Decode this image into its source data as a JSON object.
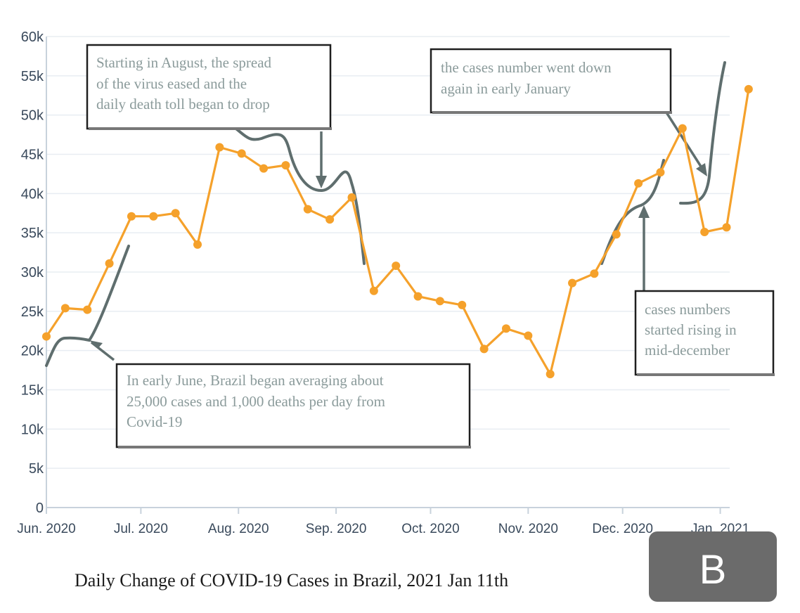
{
  "chart_data": {
    "type": "line",
    "title": "Daily Change of COVID-19 Cases in Brazil, 2021 Jan 11th",
    "xlabel": "",
    "ylabel": "",
    "ylim": [
      0,
      60000
    ],
    "y_ticks": [
      {
        "value": 0,
        "label": "0"
      },
      {
        "value": 5000,
        "label": "5k"
      },
      {
        "value": 10000,
        "label": "10k"
      },
      {
        "value": 15000,
        "label": "15k"
      },
      {
        "value": 20000,
        "label": "20k"
      },
      {
        "value": 25000,
        "label": "25k"
      },
      {
        "value": 30000,
        "label": "30k"
      },
      {
        "value": 35000,
        "label": "35k"
      },
      {
        "value": 40000,
        "label": "40k"
      },
      {
        "value": 45000,
        "label": "45k"
      },
      {
        "value": 50000,
        "label": "50k"
      },
      {
        "value": 55000,
        "label": "55k"
      },
      {
        "value": 60000,
        "label": "60k"
      }
    ],
    "x_ticks": [
      {
        "date": "2020-06-01",
        "label": "Jun. 2020"
      },
      {
        "date": "2020-07-01",
        "label": "Jul. 2020"
      },
      {
        "date": "2020-08-01",
        "label": "Aug. 2020"
      },
      {
        "date": "2020-09-01",
        "label": "Sep. 2020"
      },
      {
        "date": "2020-10-01",
        "label": "Oct. 2020"
      },
      {
        "date": "2020-11-01",
        "label": "Nov. 2020"
      },
      {
        "date": "2020-12-01",
        "label": "Dec. 2020"
      },
      {
        "date": "2021-01-01",
        "label": "Jan. 2021"
      }
    ],
    "xlim": [
      "2020-06-01",
      "2021-01-04"
    ],
    "grid": true,
    "series": [
      {
        "color": "#f5a12b",
        "points": [
          {
            "date": "2020-06-01",
            "value": 21800
          },
          {
            "date": "2020-06-07",
            "value": 25400
          },
          {
            "date": "2020-06-14",
            "value": 25200
          },
          {
            "date": "2020-06-21",
            "value": 31100
          },
          {
            "date": "2020-06-28",
            "value": 37100
          },
          {
            "date": "2020-07-05",
            "value": 37100
          },
          {
            "date": "2020-07-12",
            "value": 37500
          },
          {
            "date": "2020-07-19",
            "value": 33500
          },
          {
            "date": "2020-07-26",
            "value": 45900
          },
          {
            "date": "2020-08-02",
            "value": 45100
          },
          {
            "date": "2020-08-09",
            "value": 43200
          },
          {
            "date": "2020-08-16",
            "value": 43600
          },
          {
            "date": "2020-08-23",
            "value": 38000
          },
          {
            "date": "2020-08-30",
            "value": 36700
          },
          {
            "date": "2020-09-06",
            "value": 39500
          },
          {
            "date": "2020-09-13",
            "value": 27600
          },
          {
            "date": "2020-09-20",
            "value": 30800
          },
          {
            "date": "2020-09-27",
            "value": 26900
          },
          {
            "date": "2020-10-04",
            "value": 26300
          },
          {
            "date": "2020-10-11",
            "value": 25800
          },
          {
            "date": "2020-10-18",
            "value": 20200
          },
          {
            "date": "2020-10-25",
            "value": 22800
          },
          {
            "date": "2020-11-01",
            "value": 21900
          },
          {
            "date": "2020-11-08",
            "value": 17000
          },
          {
            "date": "2020-11-15",
            "value": 28600
          },
          {
            "date": "2020-11-22",
            "value": 29800
          },
          {
            "date": "2020-11-29",
            "value": 34800
          },
          {
            "date": "2020-12-06",
            "value": 41300
          },
          {
            "date": "2020-12-13",
            "value": 42700
          },
          {
            "date": "2020-12-20",
            "value": 48300
          },
          {
            "date": "2020-12-27",
            "value": 35100
          },
          {
            "date": "2021-01-03",
            "value": 35700
          },
          {
            "date": "2021-01-10",
            "value": 53300
          }
        ]
      }
    ],
    "annotations": [
      {
        "id": "june",
        "lines": [
          "In early June, Brazil began averaging about",
          "25,000 cases and 1,000 deaths per day from",
          "Covid-19"
        ]
      },
      {
        "id": "august",
        "lines": [
          "Starting in August, the spread",
          "of the virus eased and the",
          "daily death toll began to drop"
        ]
      },
      {
        "id": "december",
        "lines": [
          "cases numbers",
          "started rising in",
          "mid-december"
        ]
      },
      {
        "id": "january",
        "lines": [
          "the cases number went down",
          "again in early January"
        ]
      }
    ]
  },
  "badge": {
    "label": "B",
    "color": "#6b6b6b"
  },
  "colors": {
    "line": "#f5a12b",
    "trend": "#5f6e6e",
    "grid": "#e8edf2",
    "axis": "#c8d2dc"
  }
}
